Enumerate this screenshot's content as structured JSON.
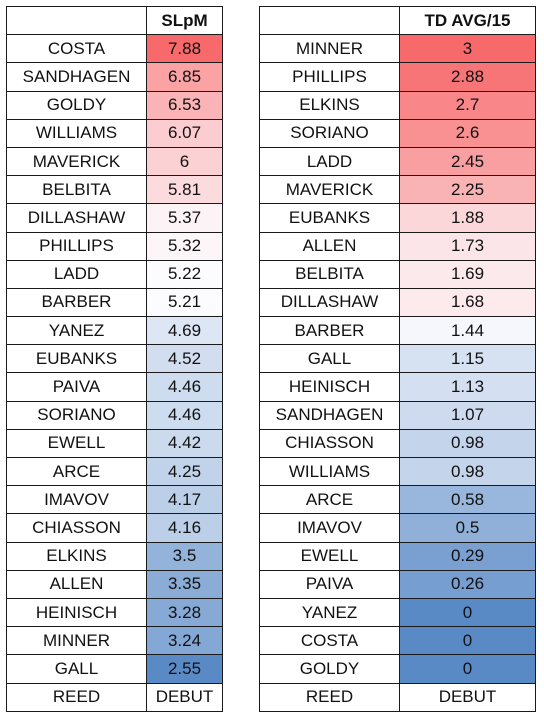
{
  "scale": {
    "high": "#f8696b",
    "mid": "#fcfcff",
    "low": "#5a8ac6"
  },
  "tables": [
    {
      "header": "SLpM",
      "rows": [
        {
          "name": "COSTA",
          "value": "7.88"
        },
        {
          "name": "SANDHAGEN",
          "value": "6.85"
        },
        {
          "name": "GOLDY",
          "value": "6.53"
        },
        {
          "name": "WILLIAMS",
          "value": "6.07"
        },
        {
          "name": "MAVERICK",
          "value": "6"
        },
        {
          "name": "BELBITA",
          "value": "5.81"
        },
        {
          "name": "DILLASHAW",
          "value": "5.37"
        },
        {
          "name": "PHILLIPS",
          "value": "5.32"
        },
        {
          "name": "LADD",
          "value": "5.22"
        },
        {
          "name": "BARBER",
          "value": "5.21"
        },
        {
          "name": "YANEZ",
          "value": "4.69"
        },
        {
          "name": "EUBANKS",
          "value": "4.52"
        },
        {
          "name": "PAIVA",
          "value": "4.46"
        },
        {
          "name": "SORIANO",
          "value": "4.46"
        },
        {
          "name": "EWELL",
          "value": "4.42"
        },
        {
          "name": "ARCE",
          "value": "4.25"
        },
        {
          "name": "IMAVOV",
          "value": "4.17"
        },
        {
          "name": "CHIASSON",
          "value": "4.16"
        },
        {
          "name": "ELKINS",
          "value": "3.5"
        },
        {
          "name": "ALLEN",
          "value": "3.35"
        },
        {
          "name": "HEINISCH",
          "value": "3.28"
        },
        {
          "name": "MINNER",
          "value": "3.24"
        },
        {
          "name": "GALL",
          "value": "2.55"
        },
        {
          "name": "REED",
          "value": "DEBUT"
        }
      ]
    },
    {
      "header": "TD AVG/15",
      "rows": [
        {
          "name": "MINNER",
          "value": "3"
        },
        {
          "name": "PHILLIPS",
          "value": "2.88"
        },
        {
          "name": "ELKINS",
          "value": "2.7"
        },
        {
          "name": "SORIANO",
          "value": "2.6"
        },
        {
          "name": "LADD",
          "value": "2.45"
        },
        {
          "name": "MAVERICK",
          "value": "2.25"
        },
        {
          "name": "EUBANKS",
          "value": "1.88"
        },
        {
          "name": "ALLEN",
          "value": "1.73"
        },
        {
          "name": "BELBITA",
          "value": "1.69"
        },
        {
          "name": "DILLASHAW",
          "value": "1.68"
        },
        {
          "name": "BARBER",
          "value": "1.44"
        },
        {
          "name": "GALL",
          "value": "1.15"
        },
        {
          "name": "HEINISCH",
          "value": "1.13"
        },
        {
          "name": "SANDHAGEN",
          "value": "1.07"
        },
        {
          "name": "CHIASSON",
          "value": "0.98"
        },
        {
          "name": "WILLIAMS",
          "value": "0.98"
        },
        {
          "name": "ARCE",
          "value": "0.58"
        },
        {
          "name": "IMAVOV",
          "value": "0.5"
        },
        {
          "name": "EWELL",
          "value": "0.29"
        },
        {
          "name": "PAIVA",
          "value": "0.26"
        },
        {
          "name": "YANEZ",
          "value": "0"
        },
        {
          "name": "COSTA",
          "value": "0"
        },
        {
          "name": "GOLDY",
          "value": "0"
        },
        {
          "name": "REED",
          "value": "DEBUT"
        }
      ]
    }
  ]
}
